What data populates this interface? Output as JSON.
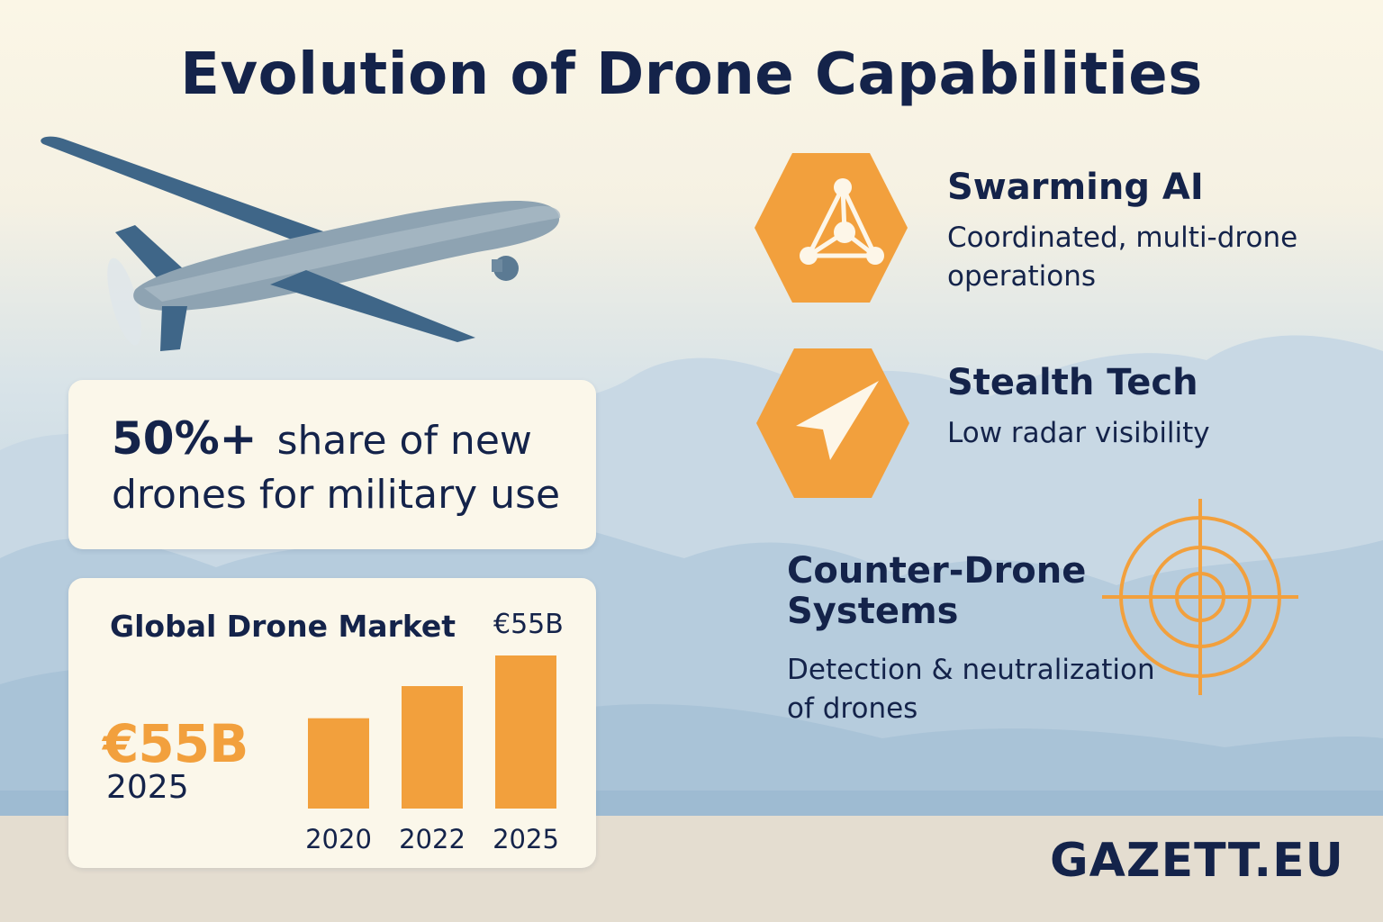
{
  "title": "Evolution of Drone Capabilities",
  "stat": {
    "number": "50%+",
    "text_line1": "share of new",
    "text_line2": "drones for military use"
  },
  "market": {
    "title": "Global Drone Market",
    "badge": "€55B",
    "highlight_value": "€55B",
    "highlight_year": "2025"
  },
  "chart_data": {
    "type": "bar",
    "categories": [
      "2020",
      "2022",
      "2025"
    ],
    "values": [
      0.59,
      0.8,
      1.0
    ],
    "value_note": "relative bar heights (no axis printed); 2025 = €55B",
    "title": "Global Drone Market",
    "xlabel": "",
    "ylabel": "",
    "grid": false,
    "color": "#f2a03d"
  },
  "features": [
    {
      "title": "Swarming AI",
      "description": "Coordinated, multi-drone operations",
      "icon": "swarm-network-icon"
    },
    {
      "title": "Stealth Tech",
      "description": "Low radar visibility",
      "icon": "stealth-arrow-icon"
    },
    {
      "title": "Counter-Drone Systems",
      "description": "Detection & neutralization of drones",
      "icon": "crosshair-target-icon"
    }
  ],
  "brand": "GAZETT.EU",
  "colors": {
    "accent": "#f2a03d",
    "navy": "#14234a",
    "card": "#fbf7ea",
    "sky_top": "#fbf6e6",
    "sky_bottom": "#b9cfe0",
    "ground": "#e4ddd0"
  }
}
